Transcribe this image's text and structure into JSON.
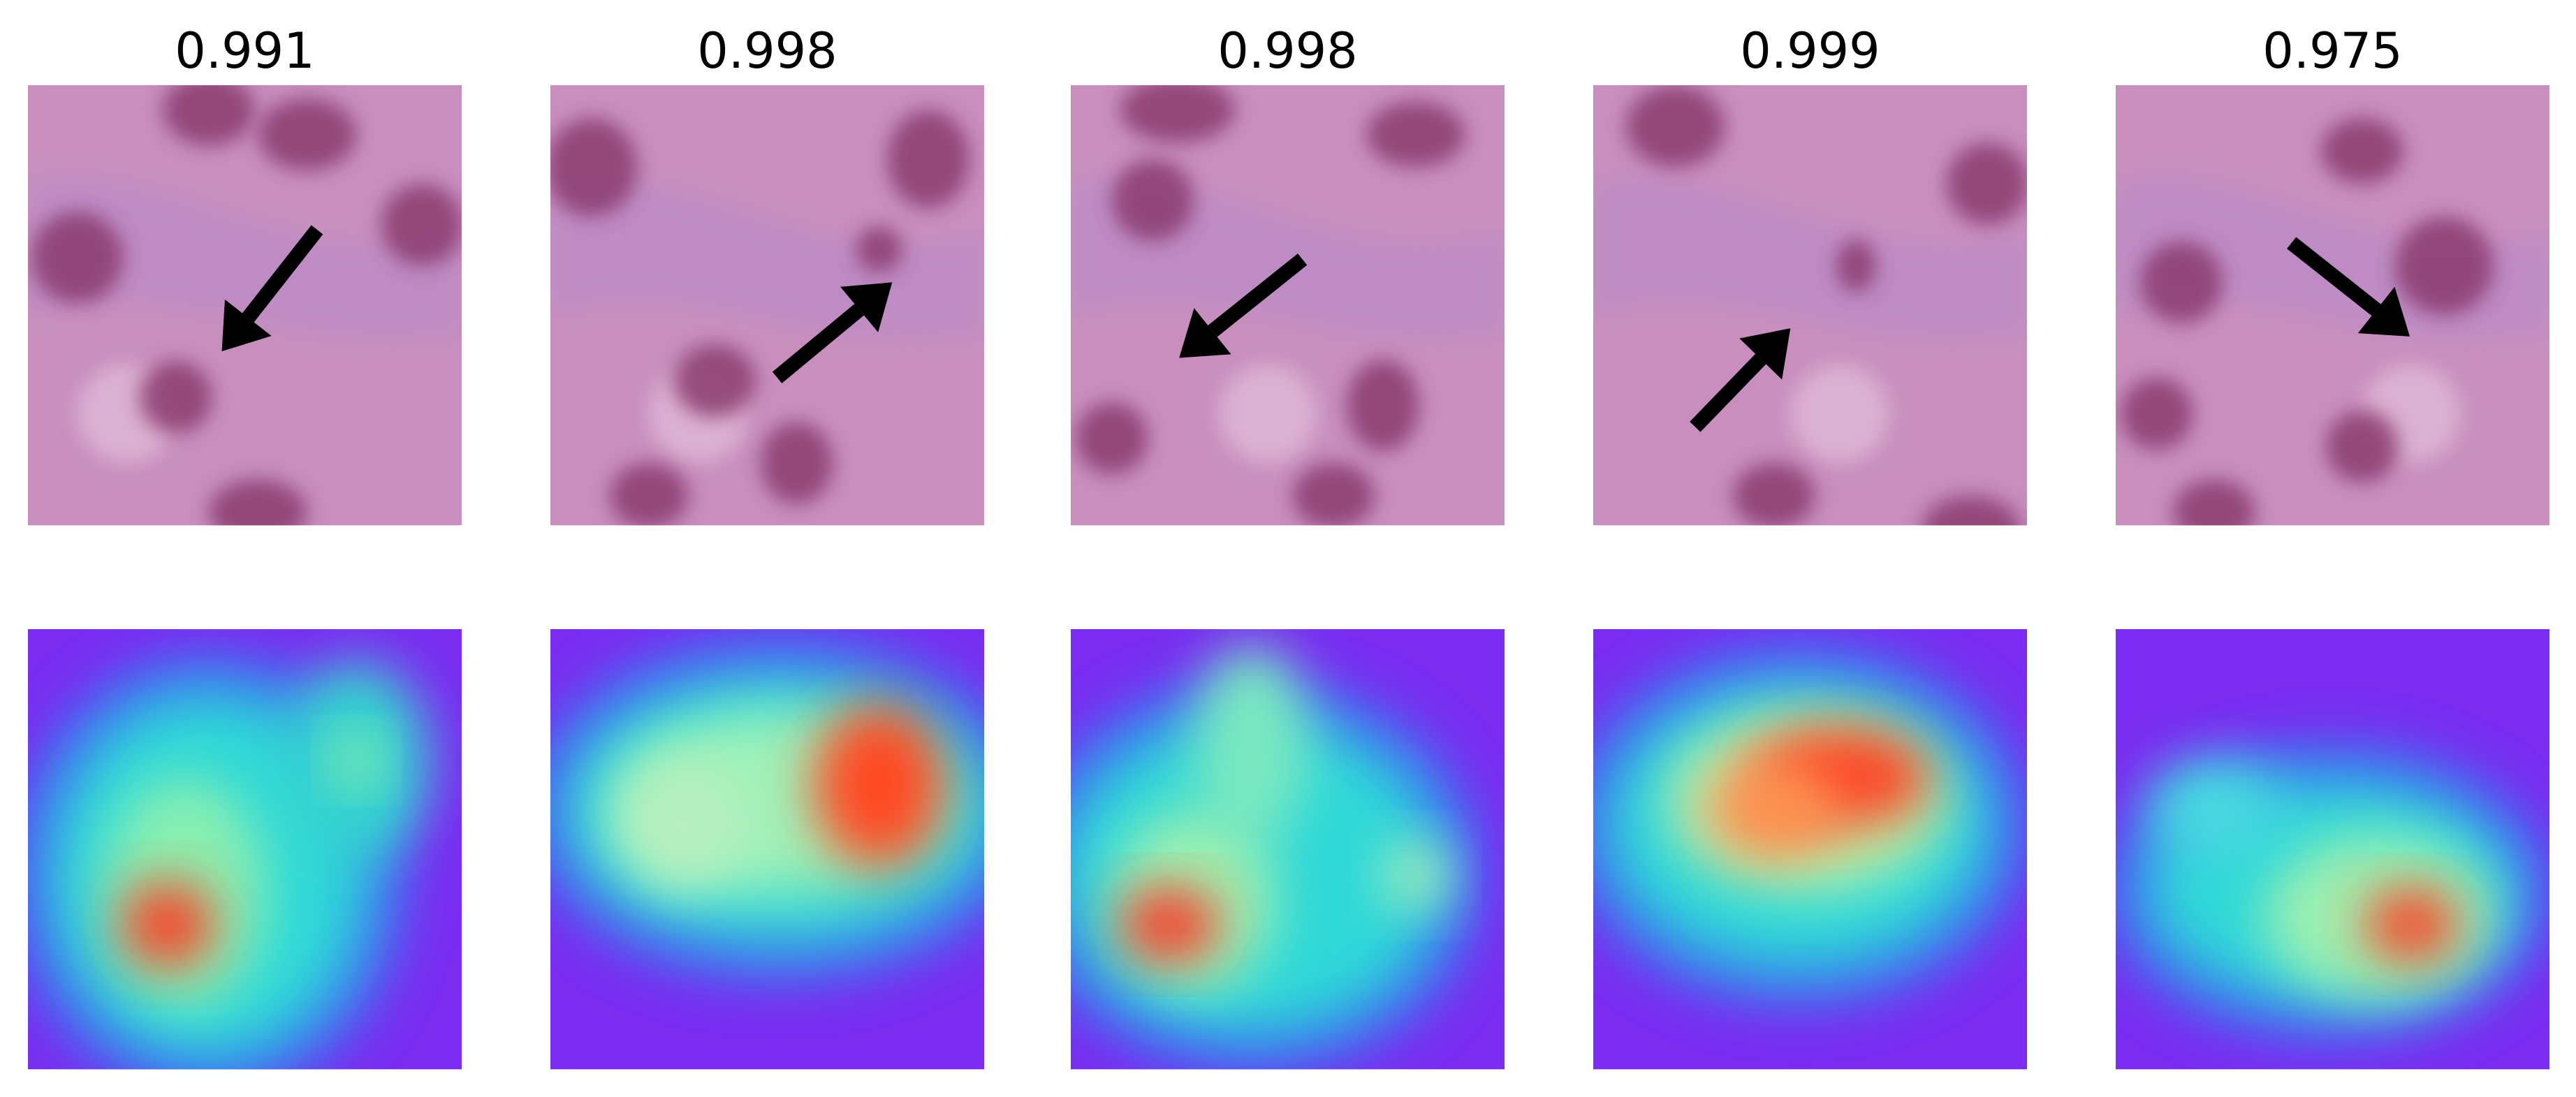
{
  "panels": [
    {
      "score": "0.991"
    },
    {
      "score": "0.998"
    },
    {
      "score": "0.998"
    },
    {
      "score": "0.999"
    },
    {
      "score": "0.975"
    }
  ]
}
